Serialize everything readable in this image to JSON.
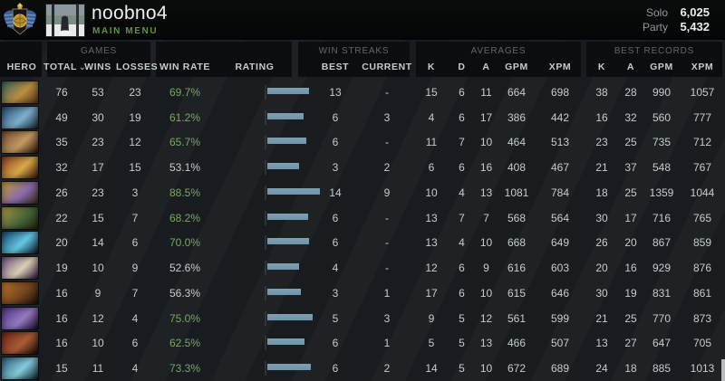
{
  "topbar": {
    "username": "noobno4",
    "menu_label": "MAIN MENU",
    "ratings": [
      {
        "label": "Solo",
        "value": "6,025"
      },
      {
        "label": "Party",
        "value": "5,432"
      }
    ]
  },
  "table": {
    "groups": {
      "games": "GAMES",
      "streaks": "WIN STREAKS",
      "averages": "AVERAGES",
      "records": "BEST RECORDS"
    },
    "columns": {
      "hero": "HERO",
      "total": "TOTAL",
      "wins": "WINS",
      "losses": "LOSSES",
      "win_rate": "WIN RATE",
      "rating": "RATING",
      "best": "BEST",
      "current": "CURRENT",
      "k": "K",
      "d": "D",
      "a": "A",
      "gpm": "GPM",
      "xpm": "XPM",
      "rk": "K",
      "ra": "A",
      "rgpm": "GPM",
      "rxpm": "XPM"
    },
    "sort_caret": "⌄",
    "rows": [
      {
        "hero_colors": [
          "#35625f",
          "#b9903f",
          "#56321c"
        ],
        "total": "76",
        "wins": "53",
        "losses": "23",
        "win_rate": "69.7%",
        "win_rate_green": true,
        "rating_pct": 69.7,
        "best": "13",
        "current": "-",
        "k": "15",
        "d": "6",
        "a": "11",
        "gpm": "664",
        "xpm": "698",
        "rk": "38",
        "ra": "28",
        "rgpm": "990",
        "rxpm": "1057"
      },
      {
        "hero_colors": [
          "#27496b",
          "#7fb0d0",
          "#142330"
        ],
        "total": "49",
        "wins": "30",
        "losses": "19",
        "win_rate": "61.2%",
        "win_rate_green": true,
        "rating_pct": 61.2,
        "best": "6",
        "current": "3",
        "k": "4",
        "d": "6",
        "a": "17",
        "gpm": "386",
        "xpm": "442",
        "rk": "16",
        "ra": "32",
        "rgpm": "560",
        "rxpm": "777"
      },
      {
        "hero_colors": [
          "#744a2a",
          "#c49a64",
          "#27140a"
        ],
        "total": "35",
        "wins": "23",
        "losses": "12",
        "win_rate": "65.7%",
        "win_rate_green": true,
        "rating_pct": 65.7,
        "best": "6",
        "current": "-",
        "k": "11",
        "d": "7",
        "a": "10",
        "gpm": "464",
        "xpm": "513",
        "rk": "23",
        "ra": "25",
        "rgpm": "735",
        "rxpm": "712"
      },
      {
        "hero_colors": [
          "#8c3a22",
          "#d9a94a",
          "#33120c"
        ],
        "total": "32",
        "wins": "17",
        "losses": "15",
        "win_rate": "53.1%",
        "win_rate_green": false,
        "rating_pct": 53.1,
        "best": "3",
        "current": "2",
        "k": "6",
        "d": "6",
        "a": "16",
        "gpm": "408",
        "xpm": "467",
        "rk": "21",
        "ra": "37",
        "rgpm": "548",
        "rxpm": "767"
      },
      {
        "hero_colors": [
          "#c39a33",
          "#8a6cae",
          "#392a12"
        ],
        "total": "26",
        "wins": "23",
        "losses": "3",
        "win_rate": "88.5%",
        "win_rate_green": true,
        "rating_pct": 88.5,
        "best": "14",
        "current": "9",
        "k": "10",
        "d": "4",
        "a": "13",
        "gpm": "1081",
        "xpm": "784",
        "rk": "18",
        "ra": "25",
        "rgpm": "1359",
        "rxpm": "1044"
      },
      {
        "hero_colors": [
          "#ac9a42",
          "#48663a",
          "#211f0e"
        ],
        "total": "22",
        "wins": "15",
        "losses": "7",
        "win_rate": "68.2%",
        "win_rate_green": true,
        "rating_pct": 68.2,
        "best": "6",
        "current": "-",
        "k": "13",
        "d": "7",
        "a": "7",
        "gpm": "568",
        "xpm": "564",
        "rk": "30",
        "ra": "17",
        "rgpm": "716",
        "rxpm": "765"
      },
      {
        "hero_colors": [
          "#12486a",
          "#66c7e4",
          "#081620"
        ],
        "total": "20",
        "wins": "14",
        "losses": "6",
        "win_rate": "70.0%",
        "win_rate_green": true,
        "rating_pct": 70.0,
        "best": "6",
        "current": "-",
        "k": "13",
        "d": "4",
        "a": "10",
        "gpm": "668",
        "xpm": "649",
        "rk": "26",
        "ra": "20",
        "rgpm": "867",
        "rxpm": "859"
      },
      {
        "hero_colors": [
          "#6b4e7e",
          "#dccfb5",
          "#241337"
        ],
        "total": "19",
        "wins": "10",
        "losses": "9",
        "win_rate": "52.6%",
        "win_rate_green": false,
        "rating_pct": 52.6,
        "best": "4",
        "current": "-",
        "k": "12",
        "d": "6",
        "a": "9",
        "gpm": "616",
        "xpm": "603",
        "rk": "20",
        "ra": "16",
        "rgpm": "929",
        "rxpm": "876"
      },
      {
        "hero_colors": [
          "#bf7526",
          "#744720",
          "#190e07"
        ],
        "total": "16",
        "wins": "9",
        "losses": "7",
        "win_rate": "56.3%",
        "win_rate_green": false,
        "rating_pct": 56.3,
        "best": "3",
        "current": "1",
        "k": "17",
        "d": "6",
        "a": "10",
        "gpm": "615",
        "xpm": "646",
        "rk": "30",
        "ra": "19",
        "rgpm": "831",
        "rxpm": "861"
      },
      {
        "hero_colors": [
          "#4f3284",
          "#9679c2",
          "#150823"
        ],
        "total": "16",
        "wins": "12",
        "losses": "4",
        "win_rate": "75.0%",
        "win_rate_green": true,
        "rating_pct": 75.0,
        "best": "5",
        "current": "3",
        "k": "9",
        "d": "5",
        "a": "12",
        "gpm": "561",
        "xpm": "599",
        "rk": "21",
        "ra": "25",
        "rgpm": "770",
        "rxpm": "873"
      },
      {
        "hero_colors": [
          "#6d2414",
          "#aa5c36",
          "#150905"
        ],
        "total": "16",
        "wins": "10",
        "losses": "6",
        "win_rate": "62.5%",
        "win_rate_green": true,
        "rating_pct": 62.5,
        "best": "6",
        "current": "1",
        "k": "5",
        "d": "5",
        "a": "13",
        "gpm": "466",
        "xpm": "507",
        "rk": "13",
        "ra": "27",
        "rgpm": "647",
        "rxpm": "705"
      },
      {
        "hero_colors": [
          "#2b5a78",
          "#84ccda",
          "#07202b"
        ],
        "total": "15",
        "wins": "11",
        "losses": "4",
        "win_rate": "73.3%",
        "win_rate_green": true,
        "rating_pct": 73.3,
        "best": "6",
        "current": "2",
        "k": "14",
        "d": "5",
        "a": "10",
        "gpm": "672",
        "xpm": "689",
        "rk": "24",
        "ra": "18",
        "rgpm": "885",
        "rxpm": "1013"
      }
    ]
  },
  "colors": {
    "accent_green": "#7da465",
    "neutral_text": "#c7ccce",
    "menu_green": "#5f9340",
    "bar_fill": "#7f9fb3",
    "bar_track": "#050708"
  }
}
